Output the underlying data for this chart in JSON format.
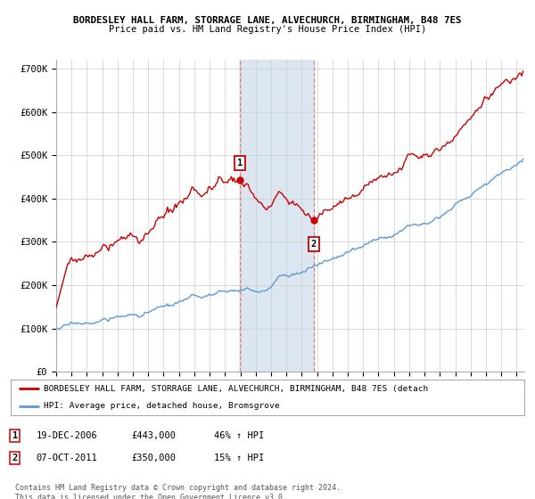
{
  "title1": "BORDESLEY HALL FARM, STORRAGE LANE, ALVECHURCH, BIRMINGHAM, B48 7ES",
  "title2": "Price paid vs. HM Land Registry's House Price Index (HPI)",
  "ylabel_ticks": [
    "£0",
    "£100K",
    "£200K",
    "£300K",
    "£400K",
    "£500K",
    "£600K",
    "£700K"
  ],
  "ytick_vals": [
    0,
    100000,
    200000,
    300000,
    400000,
    500000,
    600000,
    700000
  ],
  "ylim": [
    0,
    720000
  ],
  "xlim_start": 1995.0,
  "xlim_end": 2025.5,
  "sale1_date_x": 2006.97,
  "sale1_price": 443000,
  "sale2_date_x": 2011.77,
  "sale2_price": 350000,
  "red_color": "#cc0000",
  "blue_color": "#5b9bd5",
  "shade_color": "#dce6f1",
  "legend_line1": "BORDESLEY HALL FARM, STORRAGE LANE, ALVECHURCH, BIRMINGHAM, B48 7ES (detach",
  "legend_line2": "HPI: Average price, detached house, Bromsgrove",
  "table_row1": [
    "1",
    "19-DEC-2006",
    "£443,000",
    "46% ↑ HPI"
  ],
  "table_row2": [
    "2",
    "07-OCT-2011",
    "£350,000",
    "15% ↑ HPI"
  ],
  "footnote": "Contains HM Land Registry data © Crown copyright and database right 2024.\nThis data is licensed under the Open Government Licence v3.0.",
  "background_color": "#ffffff",
  "grid_color": "#cccccc"
}
